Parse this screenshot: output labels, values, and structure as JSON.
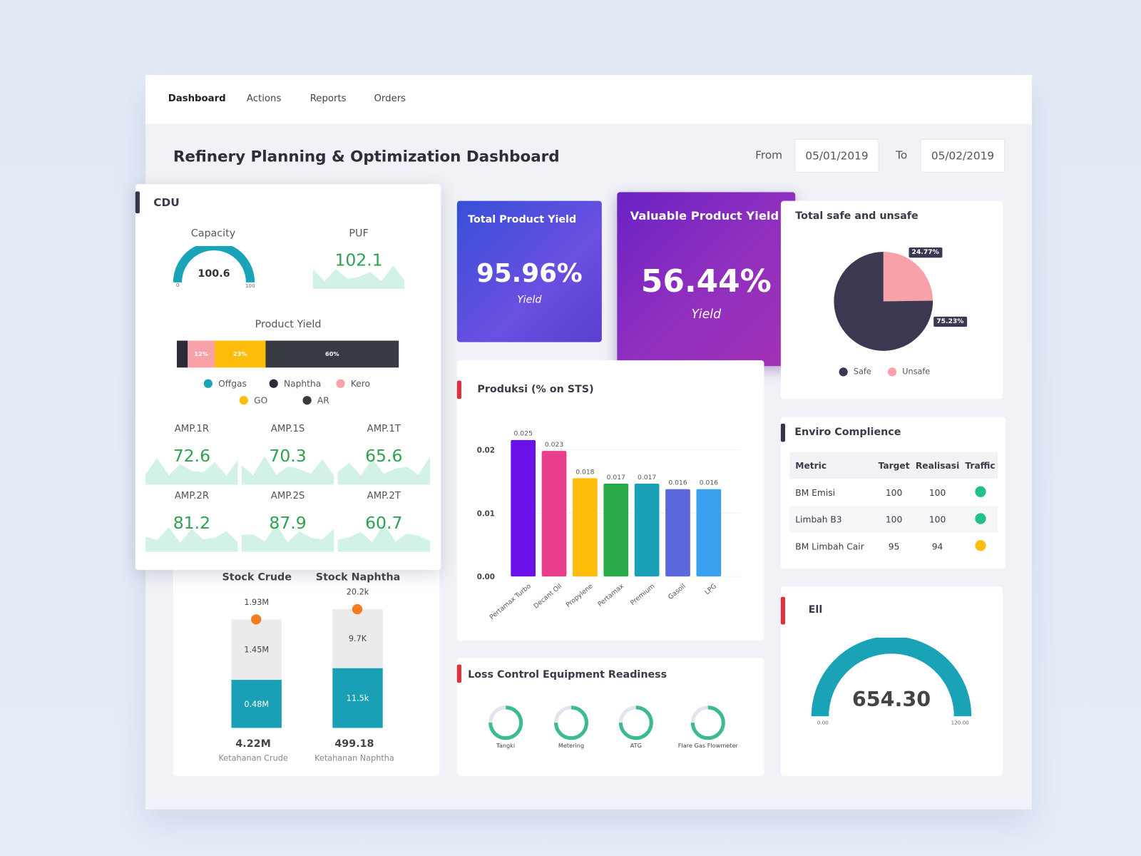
{
  "nav": {
    "items": [
      "Dashboard",
      "Actions",
      "Reports",
      "Orders"
    ],
    "active": "Dashboard"
  },
  "header": {
    "title": "Refinery Planning & Optimization Dashboard",
    "from_label": "From",
    "from_value": "05/01/2019",
    "to_label": "To",
    "to_value": "05/02/2019"
  },
  "cdu": {
    "title": "CDU",
    "capacity": {
      "label": "Capacity",
      "value": "100.6",
      "min": "0",
      "max": "100"
    },
    "puf": {
      "label": "PUF",
      "value": "102.1"
    },
    "product_yield": {
      "label": "Product Yield",
      "segments": [
        {
          "name": "Naphtha",
          "pct": 5,
          "label": "",
          "color": "#2b2b3a"
        },
        {
          "name": "Kero",
          "pct": 12,
          "label": "12%",
          "color": "#f9a1a8"
        },
        {
          "name": "GO",
          "pct": 23,
          "label": "23%",
          "color": "#fdbd0a"
        },
        {
          "name": "AR",
          "pct": 60,
          "label": "60%",
          "color": "#363a42"
        }
      ],
      "legend": [
        {
          "name": "Offgas",
          "color": "#1aa3b6"
        },
        {
          "name": "Naphtha",
          "color": "#2b2b3a"
        },
        {
          "name": "Kero",
          "color": "#f9a1a8"
        },
        {
          "name": "GO",
          "color": "#fdbd0a"
        },
        {
          "name": "AR",
          "color": "#363a42"
        }
      ]
    },
    "amps": [
      {
        "label": "AMP.1R",
        "value": "72.6"
      },
      {
        "label": "AMP.1S",
        "value": "70.3"
      },
      {
        "label": "AMP.1T",
        "value": "65.6"
      },
      {
        "label": "AMP.2R",
        "value": "81.2"
      },
      {
        "label": "AMP.2S",
        "value": "87.9"
      },
      {
        "label": "AMP.2T",
        "value": "60.7"
      }
    ]
  },
  "stock": [
    {
      "title": "Stock Crude",
      "top": "1.93M",
      "upper": "1.45M",
      "lower": "0.48M",
      "total": "4.22M",
      "caption": "Ketahanan Crude"
    },
    {
      "title": "Stock Naphtha",
      "top": "20.2k",
      "upper": "9.7K",
      "lower": "11.5k",
      "total": "499.18",
      "caption": "Ketahanan Naphtha"
    }
  ],
  "kpi": {
    "total": {
      "title": "Total Product Yield",
      "value": "95.96%",
      "sub": "Yield"
    },
    "valuable": {
      "title": "Valuable Product Yield",
      "value": "56.44%",
      "sub": "Yield"
    }
  },
  "safety": {
    "title": "Total safe and unsafe",
    "safe": {
      "label": "Safe",
      "pct": 75.23,
      "text": "75.23%",
      "color": "#3b3852"
    },
    "unsafe": {
      "label": "Unsafe",
      "pct": 24.77,
      "text": "24.77%",
      "color": "#f9a1a8"
    }
  },
  "produksi": {
    "title": "Produksi (% on STS)"
  },
  "chart_data": {
    "type": "bar",
    "title": "Produksi (% on STS)",
    "categories": [
      "Pertamax Turbo",
      "Decant Oil",
      "Propylene",
      "Pertamax",
      "Premium",
      "Gasoil",
      "LPG"
    ],
    "values": [
      0.025,
      0.023,
      0.018,
      0.017,
      0.017,
      0.016,
      0.016
    ],
    "labels": [
      "0.025",
      "0.023",
      "0.018",
      "0.017",
      "0.017",
      "0.016",
      "0.016"
    ],
    "colors": [
      "#6a11ea",
      "#e93e8a",
      "#fdbd0a",
      "#29a847",
      "#1aa0b6",
      "#5a68dc",
      "#3aa0f0"
    ],
    "yticks": [
      "0.00",
      "0.01",
      "0.02"
    ],
    "ylim": [
      0,
      0.025
    ],
    "grid": true
  },
  "loss": {
    "title": "Loss Control Equipment Readiness",
    "items": [
      {
        "label": "Tangki",
        "pct": 75
      },
      {
        "label": "Metering",
        "pct": 75
      },
      {
        "label": "ATG",
        "pct": 75
      },
      {
        "label": "Flare Gas Flowmeter",
        "pct": 75
      }
    ]
  },
  "enviro": {
    "title": "Enviro Complience",
    "headers": [
      "Metric",
      "Target",
      "Realisasi",
      "Traffic"
    ],
    "rows": [
      {
        "metric": "BM Emisi",
        "target": "100",
        "real": "100",
        "traffic": "#22c08a"
      },
      {
        "metric": "Limbah B3",
        "target": "100",
        "real": "100",
        "traffic": "#22c08a"
      },
      {
        "metric": "BM Limbah Cair",
        "target": "95",
        "real": "94",
        "traffic": "#fbbd14"
      }
    ]
  },
  "ell": {
    "title": "Ell",
    "value": "654.30",
    "min": "0.00",
    "max": "120.00"
  }
}
